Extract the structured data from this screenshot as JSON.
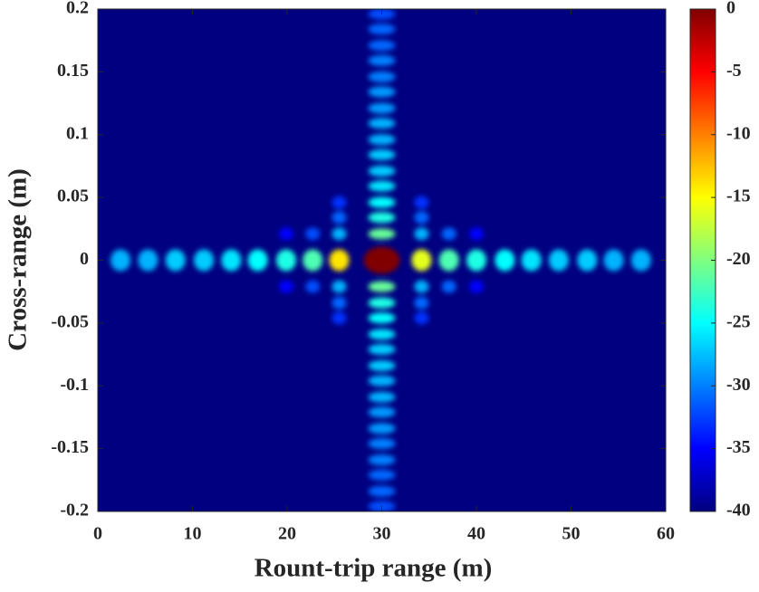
{
  "chart_data": {
    "type": "heatmap",
    "xlabel": "Rount-trip range (m)",
    "ylabel": "Cross-range (m)",
    "xlim": [
      0,
      60
    ],
    "xticks": [
      0,
      10,
      20,
      30,
      40,
      50,
      60
    ],
    "ylim": [
      -0.2,
      0.2
    ],
    "yticks": [
      0.2,
      0.15,
      0.1,
      0.05,
      0,
      -0.05,
      -0.1,
      -0.15,
      -0.2
    ],
    "zlim": [
      -40,
      0
    ],
    "zticks": [
      0,
      -5,
      -10,
      -15,
      -20,
      -25,
      -30,
      -35,
      -40
    ],
    "colormap": "jet",
    "x": [
      2.4,
      5.3,
      8.2,
      11.2,
      14.1,
      16.9,
      19.9,
      22.7,
      25.5,
      30,
      34.2,
      37.1,
      40,
      43,
      45.8,
      48.7,
      51.7,
      54.5,
      57.4,
      30,
      30,
      30,
      30,
      30,
      30,
      30,
      30,
      30,
      30,
      30,
      30,
      30,
      30,
      30,
      30,
      30,
      30,
      30,
      30,
      30,
      30,
      30,
      30,
      30,
      30,
      30,
      30,
      30,
      30,
      25.5,
      25.5,
      34.2,
      34.2,
      22.7,
      22.7,
      37.1,
      37.1,
      25.5,
      25.5,
      34.2,
      34.2,
      25.5,
      25.5,
      34.2,
      34.2,
      19.9,
      19.9,
      40,
      40
    ],
    "y": [
      0,
      0,
      0,
      0,
      0,
      0,
      0,
      0,
      0,
      0,
      0,
      0,
      0,
      0,
      0,
      0,
      0,
      0,
      0,
      0.021,
      0.034,
      0.046,
      0.059,
      0.071,
      0.084,
      0.096,
      0.109,
      0.121,
      0.134,
      0.146,
      0.159,
      0.171,
      0.184,
      0.196,
      -0.021,
      -0.034,
      -0.046,
      -0.059,
      -0.071,
      -0.084,
      -0.096,
      -0.109,
      -0.121,
      -0.134,
      -0.146,
      -0.159,
      -0.171,
      -0.184,
      -0.196,
      0.021,
      -0.021,
      0.021,
      -0.021,
      0.021,
      -0.021,
      0.021,
      -0.021,
      0.034,
      -0.034,
      0.034,
      -0.034,
      0.046,
      -0.046,
      0.046,
      -0.046,
      0.021,
      -0.021,
      0.021,
      -0.021
    ],
    "values": [
      -28,
      -28,
      -27,
      -27,
      -26,
      -25,
      -24,
      -22,
      -14,
      0,
      -16,
      -22,
      -24,
      -25,
      -26,
      -27,
      -27,
      -28,
      -28,
      -21,
      -24,
      -25,
      -26,
      -27,
      -27,
      -28,
      -28,
      -29,
      -29,
      -30,
      -30,
      -31,
      -31,
      -32,
      -21,
      -24,
      -25,
      -26,
      -27,
      -27,
      -28,
      -28,
      -29,
      -29,
      -30,
      -30,
      -31,
      -31,
      -32,
      -28,
      -28,
      -28,
      -28,
      -32,
      -32,
      -31,
      -31,
      -31,
      -31,
      -31,
      -31,
      -33,
      -33,
      -33,
      -33,
      -35,
      -35,
      -35,
      -35
    ]
  }
}
